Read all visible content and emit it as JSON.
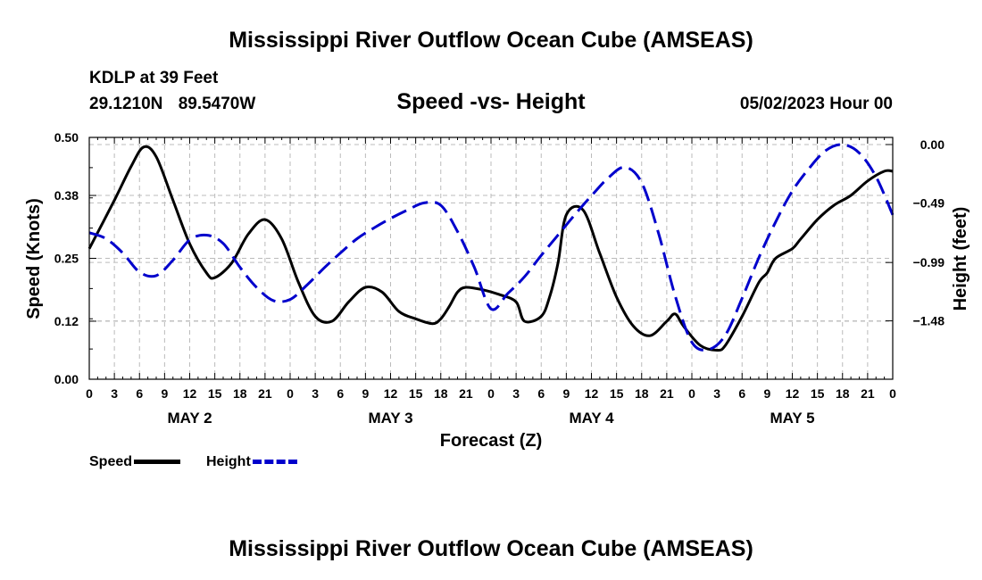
{
  "header": {
    "title": "Mississippi River Outflow Ocean Cube (AMSEAS)",
    "station": "KDLP at 39 Feet",
    "latitude": "29.1210N",
    "longitude": "89.5470W",
    "subtitle": "Speed -vs- Height",
    "datetime": "05/02/2023 Hour 00"
  },
  "footer": {
    "title": "Mississippi River Outflow Ocean Cube (AMSEAS)"
  },
  "legend": {
    "speed_label": "Speed",
    "height_label": "Height"
  },
  "chart_data": {
    "type": "line",
    "title": "Speed -vs- Height",
    "xlabel": "Forecast (Z)",
    "ylabel": "Speed (Knots)",
    "y2label": "Height (feet)",
    "x_unit": "hours from 05/02/2023 00Z",
    "xlim": [
      0,
      96
    ],
    "ylim": [
      0,
      0.5
    ],
    "y2lim": [
      -1.97,
      0.06
    ],
    "yticks": [
      0.0,
      0.12,
      0.25,
      0.38,
      0.5
    ],
    "ytick_labels": [
      "0.00",
      "0.12",
      "0.25",
      "0.38",
      "0.50"
    ],
    "y2ticks": [
      0.0,
      -0.49,
      -0.99,
      -1.48
    ],
    "y2tick_labels": [
      "0.00",
      "−0.49",
      "−0.99",
      "−1.48"
    ],
    "xtick_labels": [
      "0",
      "3",
      "6",
      "9",
      "12",
      "15",
      "18",
      "21",
      "0",
      "3",
      "6",
      "9",
      "12",
      "15",
      "18",
      "21",
      "0",
      "3",
      "6",
      "9",
      "12",
      "15",
      "18",
      "21",
      "0",
      "3",
      "6",
      "9",
      "12",
      "15",
      "18",
      "21",
      "0"
    ],
    "day_labels": [
      {
        "label": "MAY 2",
        "hour": 12
      },
      {
        "label": "MAY 3",
        "hour": 36
      },
      {
        "label": "MAY 4",
        "hour": 60
      },
      {
        "label": "MAY 5",
        "hour": 84
      }
    ],
    "series": [
      {
        "name": "Speed",
        "axis": "left",
        "color": "#000000",
        "style": "solid",
        "x": [
          0,
          3,
          5,
          6.5,
          8,
          10,
          12,
          14,
          15,
          17,
          19,
          21,
          23,
          25,
          27,
          29,
          31,
          33,
          35,
          37,
          39,
          41,
          42,
          43,
          44,
          45,
          47,
          49,
          51,
          52,
          54,
          55,
          56,
          57,
          59,
          61,
          63,
          65,
          67,
          69,
          70,
          71,
          73,
          75,
          76,
          78,
          80,
          81,
          82,
          84,
          85,
          87,
          89,
          91,
          93,
          95,
          96
        ],
        "values": [
          0.27,
          0.37,
          0.44,
          0.48,
          0.46,
          0.37,
          0.28,
          0.22,
          0.21,
          0.24,
          0.3,
          0.33,
          0.29,
          0.2,
          0.13,
          0.12,
          0.16,
          0.19,
          0.18,
          0.14,
          0.125,
          0.115,
          0.125,
          0.15,
          0.18,
          0.19,
          0.185,
          0.175,
          0.16,
          0.12,
          0.13,
          0.17,
          0.24,
          0.34,
          0.35,
          0.26,
          0.17,
          0.11,
          0.09,
          0.12,
          0.135,
          0.11,
          0.07,
          0.06,
          0.07,
          0.13,
          0.2,
          0.22,
          0.25,
          0.27,
          0.29,
          0.33,
          0.36,
          0.38,
          0.41,
          0.43,
          0.43
        ]
      },
      {
        "name": "Height",
        "axis": "right",
        "color": "#0000cc",
        "style": "dashed",
        "x": [
          0,
          2,
          4,
          6,
          8,
          10,
          12,
          14,
          16,
          18,
          20,
          22,
          24,
          26,
          28,
          30,
          32,
          34,
          36,
          38,
          40,
          42,
          44,
          46,
          48,
          50,
          52,
          54,
          56,
          58,
          60,
          62,
          64,
          66,
          68,
          70,
          72,
          74,
          76,
          78,
          80,
          82,
          84,
          86,
          88,
          90,
          92,
          94,
          96
        ],
        "values": [
          -0.74,
          -0.79,
          -0.91,
          -1.07,
          -1.1,
          -0.97,
          -0.8,
          -0.76,
          -0.83,
          -1.03,
          -1.2,
          -1.31,
          -1.3,
          -1.18,
          -1.04,
          -0.91,
          -0.79,
          -0.7,
          -0.62,
          -0.55,
          -0.49,
          -0.51,
          -0.73,
          -1.03,
          -1.38,
          -1.25,
          -1.11,
          -0.93,
          -0.76,
          -0.59,
          -0.43,
          -0.28,
          -0.19,
          -0.32,
          -0.74,
          -1.27,
          -1.66,
          -1.72,
          -1.6,
          -1.29,
          -0.95,
          -0.65,
          -0.39,
          -0.2,
          -0.05,
          0.0,
          -0.07,
          -0.27,
          -0.59
        ]
      }
    ]
  }
}
